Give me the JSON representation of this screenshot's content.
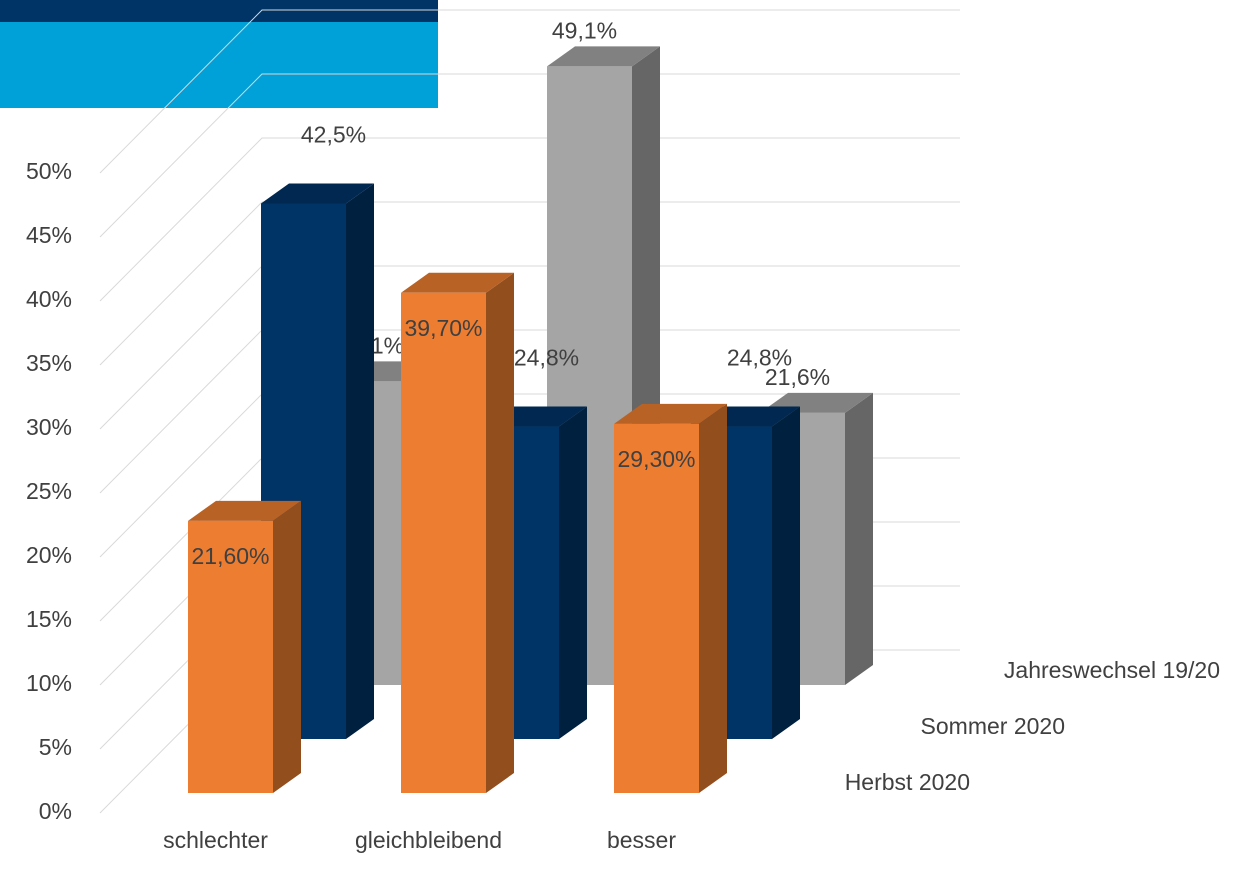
{
  "chart_data": {
    "type": "bar3d",
    "categories": [
      "schlechter",
      "gleichbleibend",
      "besser"
    ],
    "series": [
      {
        "name": "Jahreswechsel 19/20",
        "color": "#a5a5a5",
        "values": [
          24.1,
          49.1,
          21.6
        ],
        "value_labels": [
          "24,1%",
          "49,1%",
          "21,6%"
        ]
      },
      {
        "name": "Sommer 2020",
        "color": "#003366",
        "values": [
          42.5,
          24.8,
          24.8
        ],
        "value_labels": [
          "42,5%",
          "24,8%",
          "24,8%"
        ]
      },
      {
        "name": "Herbst 2020",
        "color": "#ed7d31",
        "values": [
          21.6,
          39.7,
          29.3
        ],
        "value_labels": [
          "21,60%",
          "39,70%",
          "29,30%"
        ]
      }
    ],
    "ylim": [
      0,
      50
    ],
    "yticks": [
      {
        "value": 0,
        "label": "0%"
      },
      {
        "value": 5,
        "label": "5%"
      },
      {
        "value": 10,
        "label": "10%"
      },
      {
        "value": 15,
        "label": "15%"
      },
      {
        "value": 20,
        "label": "20%"
      },
      {
        "value": 25,
        "label": "25%"
      },
      {
        "value": 30,
        "label": "30%"
      },
      {
        "value": 35,
        "label": "35%"
      },
      {
        "value": 40,
        "label": "40%"
      },
      {
        "value": 45,
        "label": "45%"
      },
      {
        "value": 50,
        "label": "50%"
      }
    ],
    "grid": true
  }
}
